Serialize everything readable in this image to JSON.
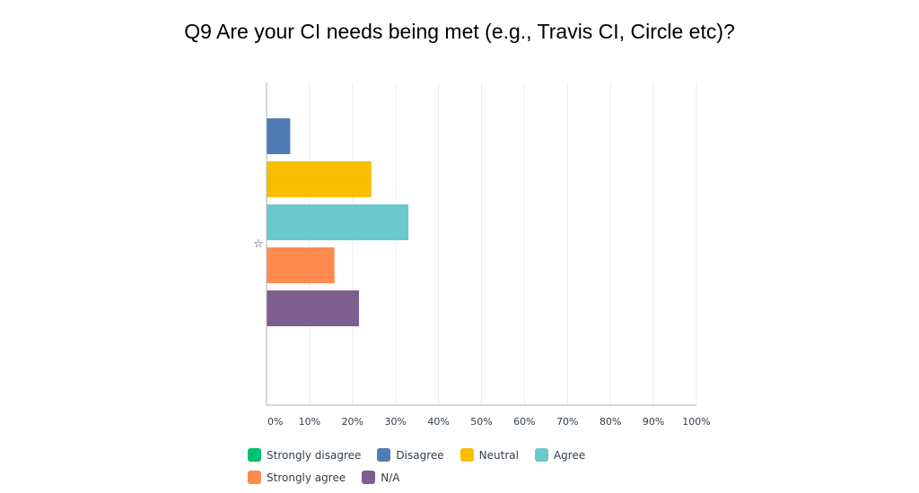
{
  "chart_data": {
    "type": "bar",
    "orientation": "horizontal",
    "title": "Q9 Are your CI needs being met (e.g., Travis CI, Circle etc)?",
    "categories": [
      "☆"
    ],
    "series": [
      {
        "name": "Strongly disagree",
        "color": "#00bf6f",
        "values": [
          0
        ]
      },
      {
        "name": "Disagree",
        "color": "#507cb6",
        "values": [
          5.4
        ]
      },
      {
        "name": "Neutral",
        "color": "#f9be00",
        "values": [
          24.3
        ]
      },
      {
        "name": "Agree",
        "color": "#6bc8cd",
        "values": [
          32.9
        ]
      },
      {
        "name": "Strongly agree",
        "color": "#ff8b4f",
        "values": [
          15.7
        ]
      },
      {
        "name": "N/A",
        "color": "#7d5e90",
        "values": [
          21.4
        ]
      }
    ],
    "xticks": [
      "0%",
      "10%",
      "20%",
      "30%",
      "40%",
      "50%",
      "60%",
      "70%",
      "80%",
      "90%",
      "100%"
    ],
    "xlim": [
      0,
      100
    ],
    "grid": true,
    "legend": "bottom"
  }
}
